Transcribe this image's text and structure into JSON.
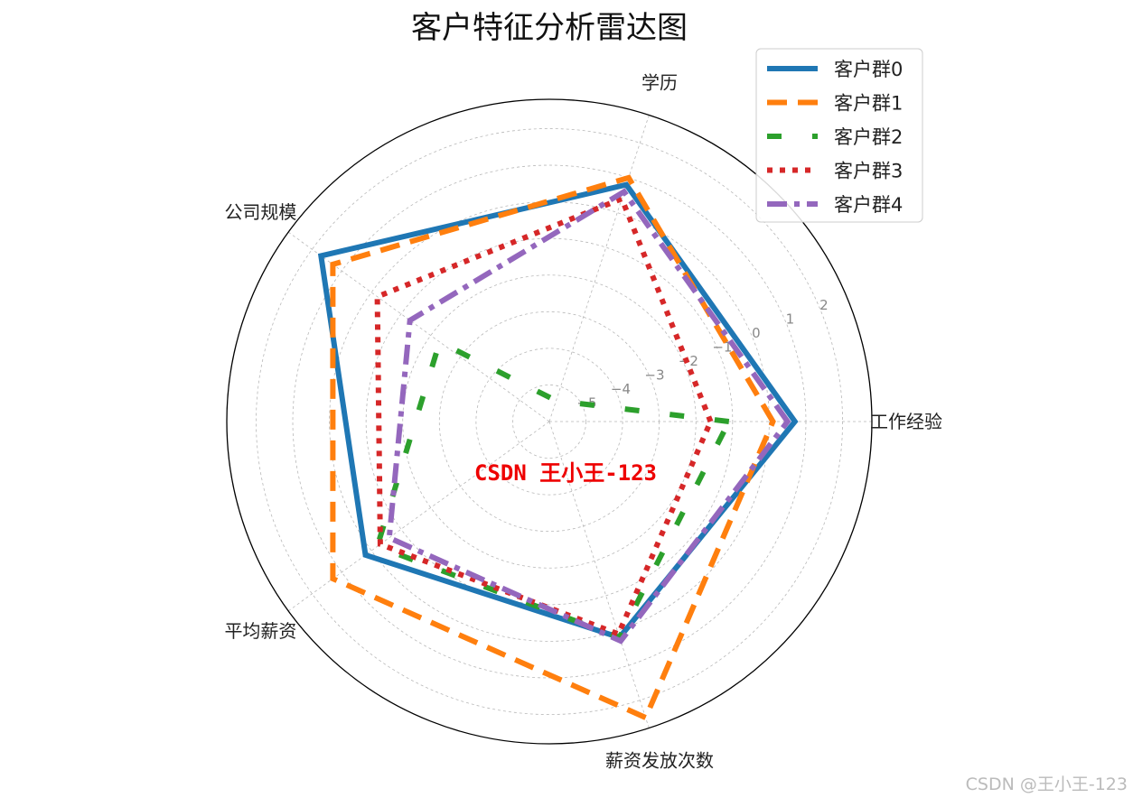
{
  "watermark_center": "CSDN 王小王-123",
  "watermark_corner": "CSDN @王小王-123",
  "chart_data": {
    "type": "radar",
    "title": "客户特征分析雷达图",
    "axes": [
      "工作经验",
      "学历",
      "公司规模",
      "平均薪资",
      "薪资发放次数"
    ],
    "radial_ticks": [
      -5,
      -4,
      -3,
      -2,
      -1,
      0,
      1,
      2
    ],
    "radial_range": [
      -6,
      2.8
    ],
    "grid": true,
    "legend_position": "top-right",
    "series": [
      {
        "name": "客户群0",
        "color": "#1f77b4",
        "line_style": "solid",
        "values": [
          0.7,
          0.8,
          1.7,
          0.2,
          0.2
        ]
      },
      {
        "name": "客户群1",
        "color": "#ff7f0e",
        "line_style": "dashed",
        "values": [
          0.1,
          1.0,
          1.3,
          1.3,
          2.5
        ]
      },
      {
        "name": "客户群2",
        "color": "#2ca02c",
        "line_style": "dash-gap",
        "values": [
          -1.1,
          -5.4,
          -2.3,
          -0.2,
          0.2
        ]
      },
      {
        "name": "客户群3",
        "color": "#d62728",
        "line_style": "dotted",
        "values": [
          -1.6,
          0.4,
          -0.2,
          -0.3,
          0.1
        ]
      },
      {
        "name": "客户群4",
        "color": "#9467bd",
        "line_style": "dashdot",
        "values": [
          0.5,
          0.6,
          -1.3,
          -0.6,
          0.3
        ]
      }
    ]
  }
}
